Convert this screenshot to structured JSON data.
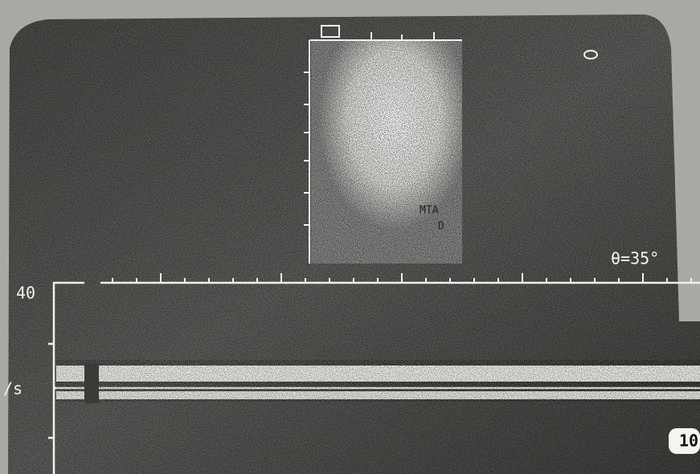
{
  "screen": {
    "sample_label": "MTA",
    "depth_label": "D",
    "angle": "θ=35°",
    "scale_max": "40",
    "unit": "/s",
    "frame": "10"
  }
}
